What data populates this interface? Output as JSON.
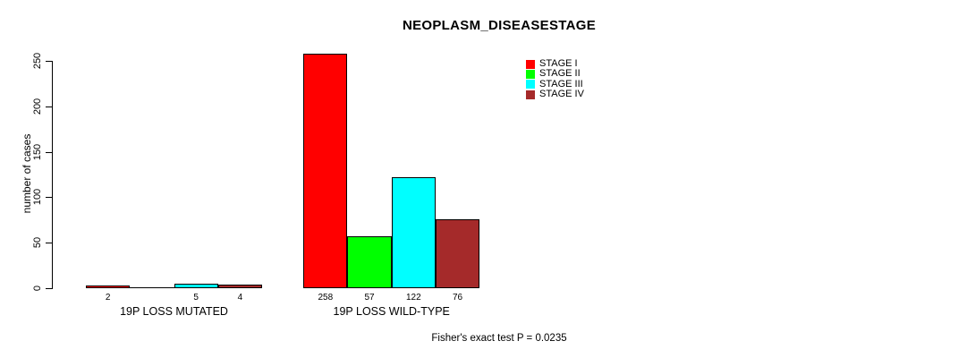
{
  "title": "NEOPLASM_DISEASESTAGE",
  "annotation": "Fisher's exact test P = 0.0235",
  "chart_data": {
    "type": "bar",
    "title": "NEOPLASM_DISEASESTAGE",
    "xlabel": "",
    "ylabel": "number of cases",
    "ylim": [
      0,
      250
    ],
    "yticks": [
      "0",
      "50",
      "100",
      "150",
      "200",
      "250"
    ],
    "grid": false,
    "legend_position": "top-right",
    "categories": [
      "19P LOSS MUTATED",
      "19P LOSS WILD-TYPE"
    ],
    "series": [
      {
        "name": "STAGE I",
        "color": "#ff0000",
        "values": [
          2,
          258
        ]
      },
      {
        "name": "STAGE II",
        "color": "#00ff00",
        "values": [
          0,
          57
        ]
      },
      {
        "name": "STAGE III",
        "color": "#00ffff",
        "values": [
          5,
          122
        ]
      },
      {
        "name": "STAGE IV",
        "color": "#a52a2a",
        "values": [
          4,
          76
        ]
      }
    ],
    "bar_value_labels": [
      [
        "2",
        "",
        "5",
        "4"
      ],
      [
        "258",
        "57",
        "122",
        "76"
      ]
    ],
    "annotation": "Fisher's exact test P = 0.0235"
  }
}
